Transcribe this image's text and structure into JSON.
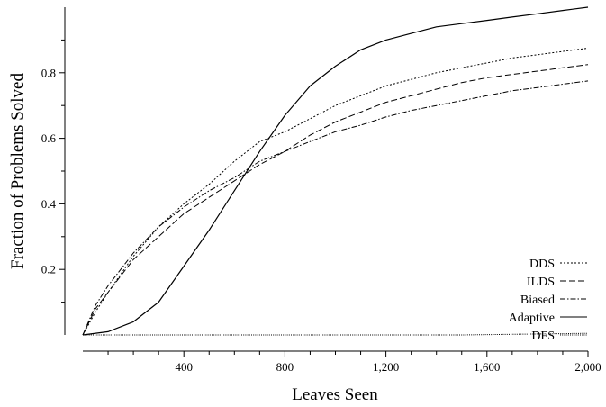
{
  "chart_data": {
    "type": "line",
    "title": "",
    "xlabel": "Leaves Seen",
    "ylabel": "Fraction of Problems Solved",
    "xlim": [
      0,
      2000
    ],
    "ylim": [
      0,
      1.0
    ],
    "xticks": [
      400,
      800,
      1200,
      1600,
      2000
    ],
    "xtick_labels": [
      "400",
      "800",
      "1,200",
      "1,600",
      "2,000"
    ],
    "yticks": [
      0.2,
      0.4,
      0.6,
      0.8
    ],
    "ytick_labels": [
      "0.2",
      "0.4",
      "0.6",
      "0.8"
    ],
    "grid": false,
    "legend_position": "bottom-right",
    "series": [
      {
        "name": "DDS",
        "dash": "dotted",
        "x": [
          0,
          50,
          100,
          200,
          300,
          400,
          500,
          600,
          700,
          800,
          900,
          1000,
          1100,
          1200,
          1300,
          1400,
          1500,
          1600,
          1700,
          1800,
          1900,
          2000
        ],
        "y": [
          0,
          0.07,
          0.13,
          0.24,
          0.33,
          0.4,
          0.46,
          0.53,
          0.59,
          0.62,
          0.66,
          0.7,
          0.73,
          0.76,
          0.78,
          0.8,
          0.815,
          0.83,
          0.845,
          0.855,
          0.865,
          0.875
        ]
      },
      {
        "name": "ILDS",
        "dash": "dashed",
        "x": [
          0,
          50,
          100,
          200,
          300,
          400,
          500,
          600,
          700,
          800,
          900,
          1000,
          1100,
          1200,
          1300,
          1400,
          1500,
          1600,
          1700,
          1800,
          1900,
          2000
        ],
        "y": [
          0,
          0.08,
          0.13,
          0.23,
          0.3,
          0.37,
          0.42,
          0.47,
          0.52,
          0.56,
          0.61,
          0.65,
          0.68,
          0.71,
          0.73,
          0.75,
          0.77,
          0.785,
          0.795,
          0.805,
          0.815,
          0.825
        ]
      },
      {
        "name": "Biased",
        "dash": "dash-dot",
        "x": [
          0,
          50,
          100,
          200,
          300,
          400,
          500,
          600,
          700,
          800,
          900,
          1000,
          1100,
          1200,
          1300,
          1400,
          1500,
          1600,
          1700,
          1800,
          1900,
          2000
        ],
        "y": [
          0,
          0.09,
          0.15,
          0.25,
          0.33,
          0.39,
          0.44,
          0.48,
          0.53,
          0.56,
          0.59,
          0.62,
          0.64,
          0.665,
          0.685,
          0.7,
          0.715,
          0.73,
          0.745,
          0.755,
          0.765,
          0.775
        ]
      },
      {
        "name": "Adaptive",
        "dash": "solid",
        "x": [
          0,
          100,
          200,
          300,
          400,
          500,
          600,
          700,
          800,
          900,
          1000,
          1100,
          1200,
          1300,
          1400,
          1500,
          1600,
          1700,
          1800,
          1900,
          2000
        ],
        "y": [
          0,
          0.01,
          0.04,
          0.1,
          0.21,
          0.32,
          0.44,
          0.56,
          0.67,
          0.76,
          0.82,
          0.87,
          0.9,
          0.92,
          0.94,
          0.95,
          0.96,
          0.97,
          0.98,
          0.99,
          1.0
        ]
      },
      {
        "name": "DFS",
        "dash": "dense-dotted",
        "x": [
          0,
          500,
          1000,
          1500,
          2000
        ],
        "y": [
          0,
          0.0,
          0.0,
          0.0,
          0.005
        ]
      }
    ]
  }
}
